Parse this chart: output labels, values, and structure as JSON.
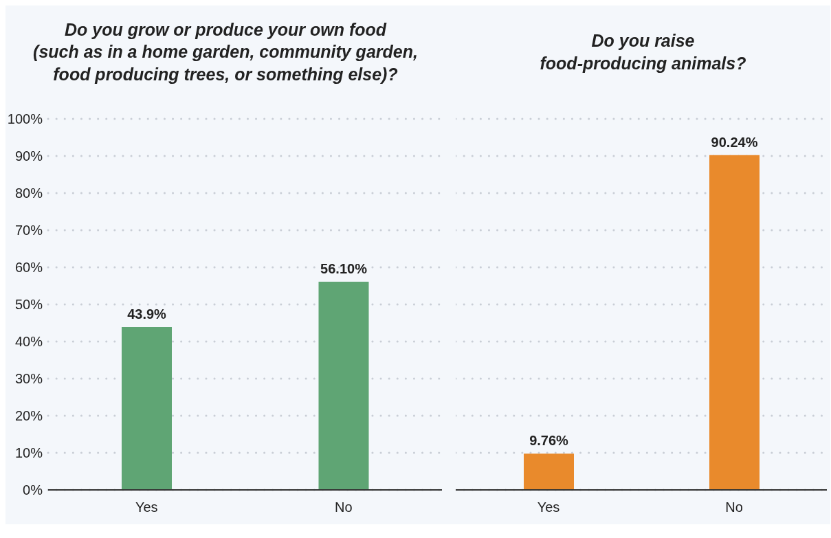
{
  "chart_data": [
    {
      "type": "bar",
      "title": "Do you grow or produce your own food\n(such as in a home garden, community garden,\nfood producing trees, or something else)?",
      "categories": [
        "Yes",
        "No"
      ],
      "values": [
        43.9,
        56.1
      ],
      "value_labels": [
        "43.9%",
        "56.10%"
      ],
      "color": "#5fa574",
      "ylim": [
        0,
        100
      ],
      "yticks": [
        {
          "value": 0,
          "label": "0%"
        },
        {
          "value": 10,
          "label": "10%"
        },
        {
          "value": 20,
          "label": "20%"
        },
        {
          "value": 30,
          "label": "30%"
        },
        {
          "value": 40,
          "label": "40%"
        },
        {
          "value": 50,
          "label": "50%"
        },
        {
          "value": 60,
          "label": "60%"
        },
        {
          "value": 70,
          "label": "70%"
        },
        {
          "value": 80,
          "label": "80%"
        },
        {
          "value": 90,
          "label": "90%"
        },
        {
          "value": 100,
          "label": "100%"
        }
      ],
      "grid": "y"
    },
    {
      "type": "bar",
      "title": "Do you raise\nfood-producing animals?",
      "categories": [
        "Yes",
        "No"
      ],
      "values": [
        9.76,
        90.24
      ],
      "value_labels": [
        "9.76%",
        "90.24%"
      ],
      "color": "#e98a2c",
      "ylim": [
        0,
        100
      ],
      "yticks": [
        0,
        10,
        20,
        30,
        40,
        50,
        60,
        70,
        80,
        90,
        100
      ],
      "grid": "y",
      "tick_labels": "x"
    }
  ]
}
